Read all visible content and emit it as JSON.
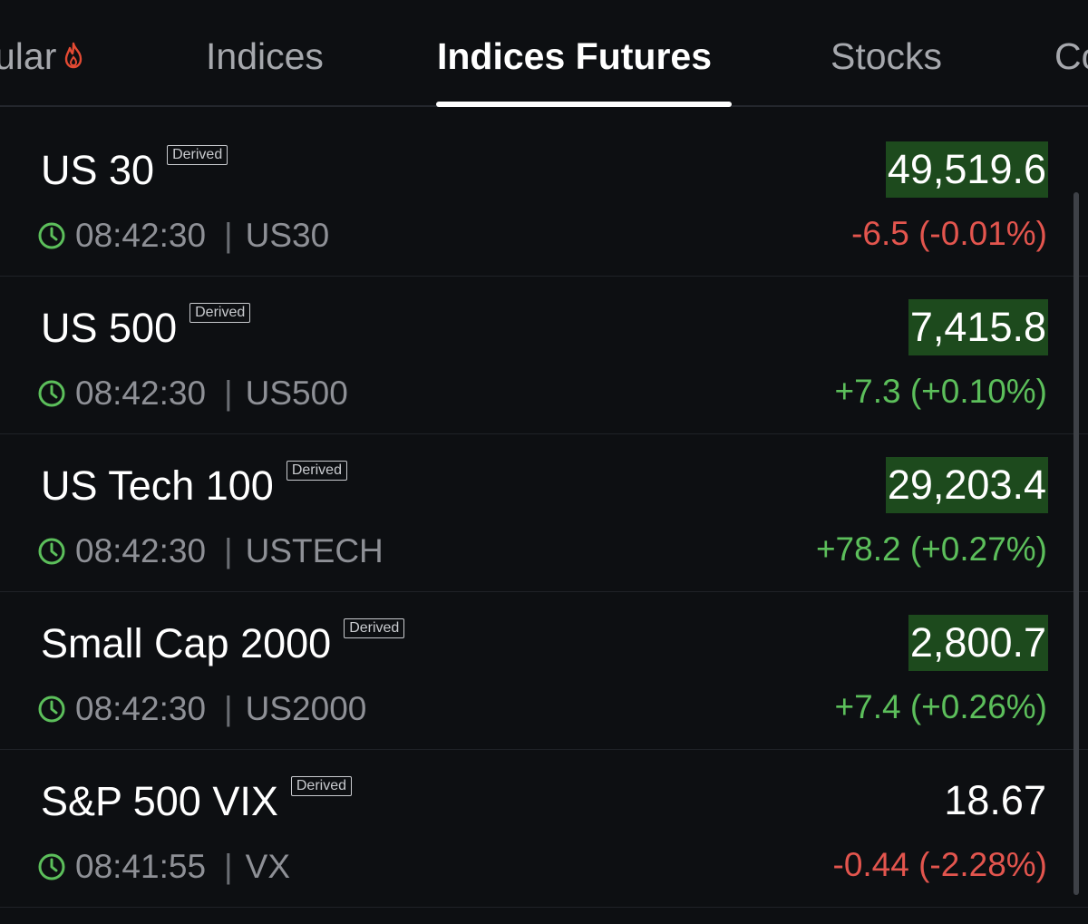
{
  "tabs": [
    {
      "label": "ular",
      "icon": "fire-icon"
    },
    {
      "label": "Indices"
    },
    {
      "label": "Indices Futures",
      "active": true
    },
    {
      "label": "Stocks"
    },
    {
      "label": "Co"
    }
  ],
  "colors": {
    "background": "#0d0f12",
    "up": "#5cbf5b",
    "down": "#e3554e",
    "price_highlight": "#1d4a1d",
    "fire": "#e34a33"
  },
  "instruments": [
    {
      "name": "US 30",
      "badge": "Derived",
      "time": "08:42:30",
      "symbol": "US30",
      "price": "49,519.6",
      "change": "-6.5 (-0.01%)",
      "direction": "down",
      "highlighted": true
    },
    {
      "name": "US 500",
      "badge": "Derived",
      "time": "08:42:30",
      "symbol": "US500",
      "price": "7,415.8",
      "change": "+7.3 (+0.10%)",
      "direction": "up",
      "highlighted": true
    },
    {
      "name": "US Tech 100",
      "badge": "Derived",
      "time": "08:42:30",
      "symbol": "USTECH",
      "price": "29,203.4",
      "change": "+78.2 (+0.27%)",
      "direction": "up",
      "highlighted": true
    },
    {
      "name": "Small Cap 2000",
      "badge": "Derived",
      "time": "08:42:30",
      "symbol": "US2000",
      "price": "2,800.7",
      "change": "+7.4 (+0.26%)",
      "direction": "up",
      "highlighted": true
    },
    {
      "name": "S&P 500 VIX",
      "badge": "Derived",
      "time": "08:41:55",
      "symbol": "VX",
      "price": "18.67",
      "change": "-0.44 (-2.28%)",
      "direction": "down",
      "highlighted": false
    }
  ]
}
